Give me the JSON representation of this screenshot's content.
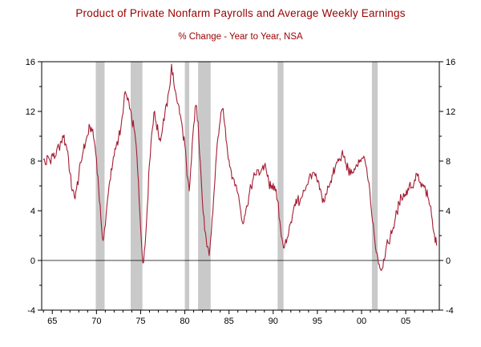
{
  "style": {
    "title_color": "#990000",
    "subtitle_color": "#990000",
    "line_color": "#A41E34",
    "band_color": "#C9C9C9",
    "axis_color": "#000000",
    "tick_label_color": "#000000",
    "background_color": "#FFFFFF"
  },
  "chart_data": {
    "type": "line",
    "title": "Product of Private Nonfarm Payrolls and Average Weekly Earnings",
    "subtitle": "% Change - Year to Year, NSA",
    "xlabel": "",
    "ylabel": "",
    "xlim": [
      1963.8,
      2008.8
    ],
    "ylim": [
      -4,
      16
    ],
    "yticks": [
      -4,
      0,
      4,
      8,
      12,
      16
    ],
    "ytick_minor_step": 2,
    "xticks": [
      1965,
      1970,
      1975,
      1980,
      1985,
      1990,
      1995,
      2000,
      2005
    ],
    "xtick_labels": [
      "65",
      "70",
      "75",
      "80",
      "85",
      "90",
      "95",
      "00",
      "05"
    ],
    "xtick_minor_step": 1,
    "grid": false,
    "zero_line": true,
    "legend": "none",
    "recession_bands": [
      [
        1969.92,
        1970.92
      ],
      [
        1973.87,
        1975.2
      ],
      [
        1980.0,
        1980.5
      ],
      [
        1981.5,
        1982.92
      ],
      [
        1990.5,
        1991.17
      ],
      [
        2001.17,
        2001.83
      ]
    ],
    "noise_amplitude": 0.45,
    "noise_subdivisions": 3,
    "series": [
      {
        "name": "Product of Private Nonfarm Payrolls and Average Weekly Earnings (% chg y/y, NSA)",
        "x_start": 1964.0,
        "x_step": 0.25,
        "values": [
          8.1,
          7.7,
          8.4,
          8.0,
          8.6,
          8.2,
          8.9,
          9.1,
          9.6,
          9.9,
          9.4,
          8.8,
          7.0,
          5.6,
          5.1,
          5.8,
          6.8,
          7.9,
          8.8,
          9.4,
          10.1,
          10.8,
          10.4,
          9.6,
          8.2,
          5.8,
          3.4,
          1.6,
          2.8,
          4.9,
          6.4,
          7.3,
          8.4,
          9.3,
          9.9,
          10.6,
          11.8,
          13.6,
          12.9,
          12.2,
          11.3,
          10.6,
          9.2,
          6.4,
          2.6,
          -0.2,
          1.2,
          4.3,
          7.8,
          10.2,
          11.9,
          11.1,
          10.2,
          9.6,
          10.8,
          11.9,
          12.4,
          13.8,
          15.8,
          14.3,
          13.4,
          12.6,
          11.7,
          10.5,
          9.3,
          6.8,
          5.6,
          8.1,
          10.9,
          12.5,
          11.2,
          7.9,
          4.6,
          2.4,
          1.1,
          0.4,
          2.3,
          4.9,
          7.8,
          9.9,
          11.2,
          12.2,
          11.0,
          9.4,
          8.1,
          7.2,
          6.6,
          6.1,
          5.4,
          4.3,
          3.1,
          3.6,
          4.4,
          5.2,
          5.9,
          6.6,
          6.9,
          7.3,
          7.0,
          7.4,
          7.6,
          7.1,
          6.3,
          5.8,
          6.2,
          5.6,
          4.8,
          3.2,
          1.8,
          1.0,
          1.4,
          2.2,
          3.1,
          3.9,
          4.4,
          4.9,
          4.6,
          5.1,
          5.6,
          6.0,
          6.4,
          6.9,
          7.1,
          6.8,
          6.3,
          5.7,
          5.2,
          4.7,
          5.3,
          5.9,
          6.4,
          6.9,
          7.4,
          7.9,
          8.2,
          8.5,
          8.3,
          7.8,
          7.3,
          6.9,
          7.1,
          7.3,
          7.6,
          7.9,
          8.2,
          8.4,
          7.6,
          6.4,
          4.9,
          3.1,
          1.6,
          0.6,
          -0.3,
          -0.8,
          0.1,
          0.9,
          1.4,
          1.9,
          2.4,
          3.1,
          3.9,
          4.6,
          5.1,
          5.4,
          5.2,
          5.8,
          6.3,
          5.9,
          6.5,
          7.0,
          6.4,
          5.9,
          6.1,
          5.6,
          5.1,
          4.4,
          3.3,
          2.1,
          1.2
        ]
      }
    ]
  }
}
